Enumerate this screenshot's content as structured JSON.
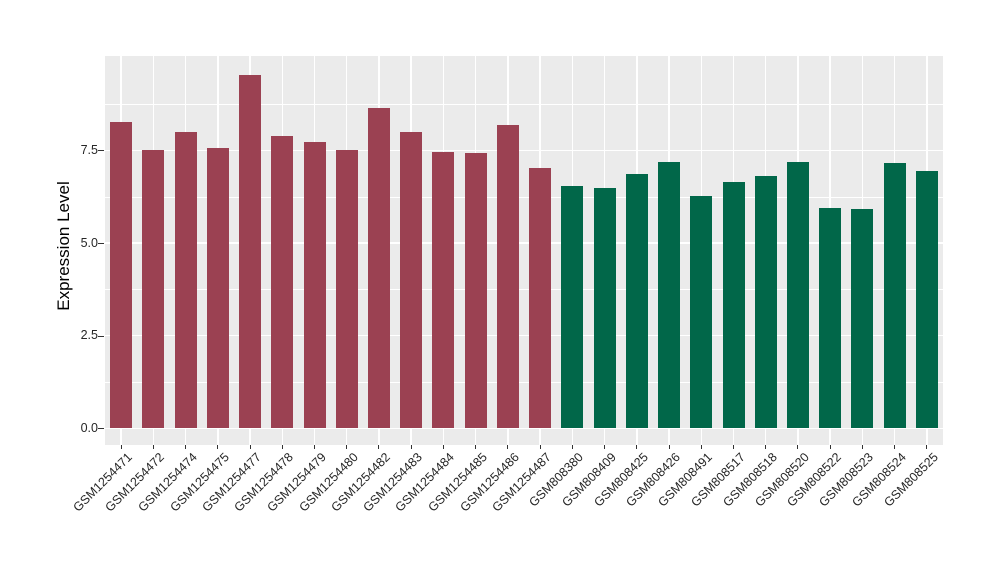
{
  "chart_data": {
    "type": "bar",
    "title": "",
    "xlabel": "",
    "ylabel": "Expression Level",
    "legend_position": "none",
    "grid": true,
    "panel_bg": "#EBEBEB",
    "grid_color": "#FFFFFF",
    "axis_text_color": "#262626",
    "tick_mark_color": "#333333",
    "ylim": [
      -0.45,
      10.05
    ],
    "yticks": [
      0,
      2.5,
      5,
      7.5
    ],
    "ytick_labels": [
      "0.0",
      "2.5",
      "5.0",
      "7.5"
    ],
    "yticks_minor": [
      1.25,
      3.75,
      6.25,
      8.75
    ],
    "x_label_angle_deg": 45,
    "categories": [
      "GSM1254471",
      "GSM1254472",
      "GSM1254474",
      "GSM1254475",
      "GSM1254477",
      "GSM1254478",
      "GSM1254479",
      "GSM1254480",
      "GSM1254482",
      "GSM1254483",
      "GSM1254484",
      "GSM1254485",
      "GSM1254486",
      "GSM1254487",
      "GSM808380",
      "GSM808409",
      "GSM808425",
      "GSM808426",
      "GSM808491",
      "GSM808517",
      "GSM808518",
      "GSM808520",
      "GSM808522",
      "GSM808523",
      "GSM808524",
      "GSM808525"
    ],
    "values": [
      8.28,
      7.5,
      8.0,
      7.57,
      9.53,
      7.89,
      7.73,
      7.5,
      8.64,
      8.0,
      7.47,
      7.44,
      8.18,
      7.03,
      6.53,
      6.5,
      6.87,
      7.18,
      6.28,
      6.66,
      6.82,
      7.2,
      5.96,
      5.92,
      7.15,
      6.94
    ],
    "groups": [
      {
        "name": "GSM1254471-GSM1254487",
        "color": "#9B4152"
      },
      {
        "name": "GSM808380-GSM808525",
        "color": "#016749"
      }
    ],
    "bar_group_index": [
      0,
      0,
      0,
      0,
      0,
      0,
      0,
      0,
      0,
      0,
      0,
      0,
      0,
      0,
      1,
      1,
      1,
      1,
      1,
      1,
      1,
      1,
      1,
      1,
      1,
      1
    ]
  }
}
